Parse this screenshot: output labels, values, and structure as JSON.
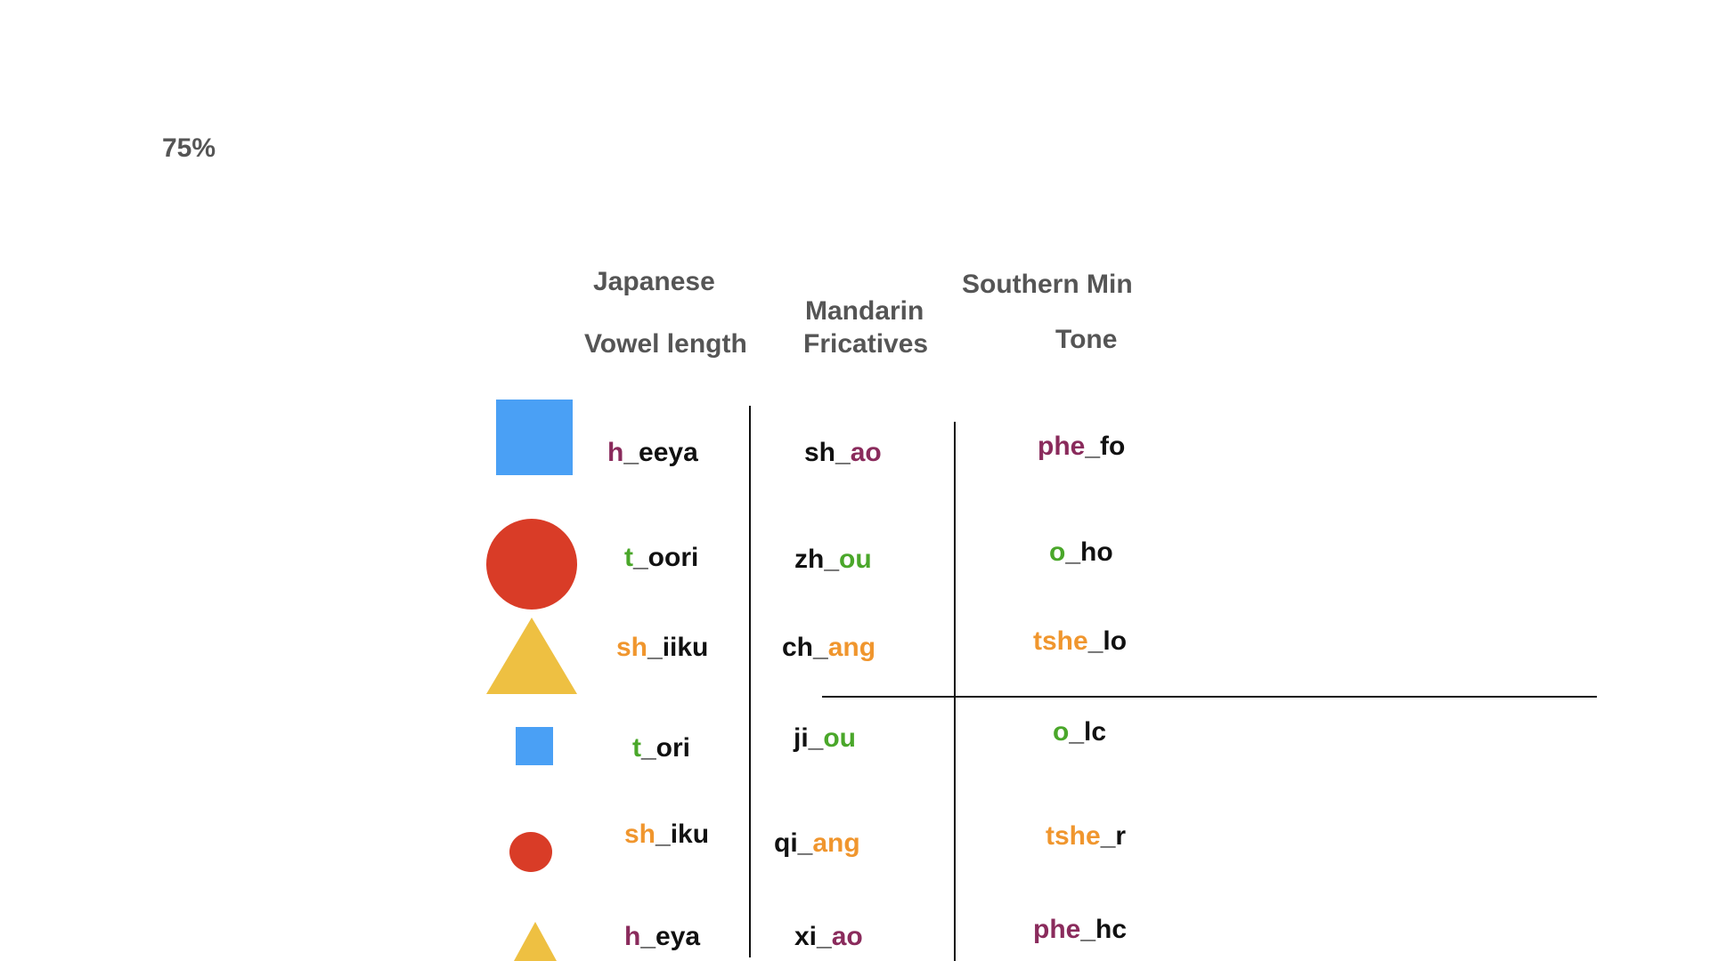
{
  "percent_label": "75%",
  "colors": {
    "blue": "#4aa0f5",
    "red": "#d93c27",
    "yellow": "#eec042",
    "purple": "#8a2b5c",
    "green": "#4aa72a",
    "orange": "#f0962e",
    "black": "#111111",
    "header_gray": "#555555"
  },
  "headers": {
    "japanese": "Japanese",
    "vowel_length": "Vowel length",
    "mandarin": "Mandarin",
    "fricatives": "Fricatives",
    "southern_min": "Southern Min",
    "tone": "Tone"
  },
  "rows": [
    {
      "shape": "square-large",
      "japanese": {
        "a": "h",
        "b": "_eeya",
        "color": "purple"
      },
      "mandarin": {
        "a": "sh_",
        "b": "ao",
        "color": "purple"
      },
      "min": {
        "a": "phe",
        "b": "_fo",
        "color": "purple"
      }
    },
    {
      "shape": "circle-large",
      "japanese": {
        "a": "t",
        "b": "_oori",
        "color": "green"
      },
      "mandarin": {
        "a": "zh_",
        "b": "ou",
        "color": "green"
      },
      "min": {
        "a": "o",
        "b": "_ho",
        "color": "green"
      }
    },
    {
      "shape": "triangle-large",
      "japanese": {
        "a": "sh",
        "b": "_iiku",
        "color": "orange"
      },
      "mandarin": {
        "a": "ch_",
        "b": "ang",
        "color": "orange"
      },
      "min": {
        "a": "tshe",
        "b": "_lo",
        "color": "orange"
      }
    },
    {
      "shape": "square-small",
      "japanese": {
        "a": "t",
        "b": "_ori",
        "color": "green"
      },
      "mandarin": {
        "a": "ji_",
        "b": "ou",
        "color": "green"
      },
      "min": {
        "a": "o",
        "b": "_lc",
        "color": "green"
      }
    },
    {
      "shape": "circle-small",
      "japanese": {
        "a": "sh",
        "b": "_iku",
        "color": "orange"
      },
      "mandarin": {
        "a": "qi_",
        "b": "ang",
        "color": "orange"
      },
      "min": {
        "a": "tshe",
        "b": "_r",
        "color": "orange"
      }
    },
    {
      "shape": "triangle-small",
      "japanese": {
        "a": "h",
        "b": "_eya",
        "color": "purple"
      },
      "mandarin": {
        "a": "xi_",
        "b": "ao",
        "color": "purple"
      },
      "min": {
        "a": "phe",
        "b": "_hc",
        "color": "purple"
      }
    }
  ]
}
